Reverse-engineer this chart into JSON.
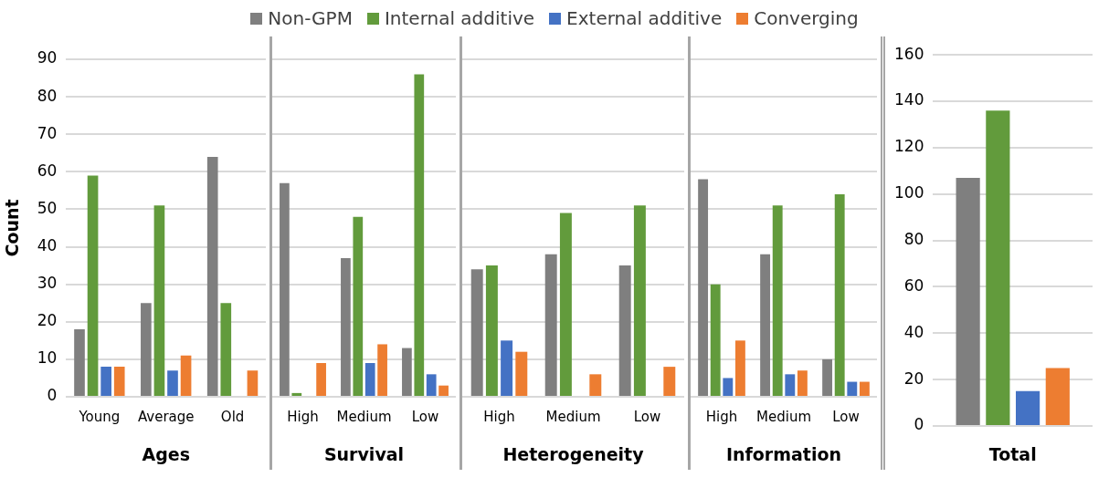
{
  "chart_data": [
    {
      "type": "bar",
      "xlabel": "Ages",
      "ylabel": "Count",
      "categories": [
        "Young",
        "Average",
        "Old"
      ],
      "ylim": [
        0,
        90
      ],
      "yticks": [
        0,
        10,
        20,
        30,
        40,
        50,
        60,
        70,
        80,
        90
      ],
      "grid": "y",
      "legend": "top",
      "series": [
        {
          "name": "Non-GPM",
          "color": "#7f7f7f",
          "values": [
            18,
            25,
            64
          ]
        },
        {
          "name": "Internal additive",
          "color": "#629b3c",
          "values": [
            59,
            51,
            25
          ]
        },
        {
          "name": "External additive",
          "color": "#4472c4",
          "values": [
            8,
            7,
            null
          ]
        },
        {
          "name": "Converging",
          "color": "#ed7d31",
          "values": [
            8,
            11,
            7
          ]
        }
      ]
    },
    {
      "type": "bar",
      "xlabel": "Survival",
      "categories": [
        "High",
        "Medium",
        "Low"
      ],
      "ylim": [
        0,
        90
      ],
      "yticks": [
        0,
        10,
        20,
        30,
        40,
        50,
        60,
        70,
        80,
        90
      ],
      "grid": "y",
      "tick_labels": "x",
      "series": [
        {
          "color": "#7f7f7f",
          "values": [
            57,
            37,
            13
          ]
        },
        {
          "color": "#629b3c",
          "values": [
            1,
            48,
            86
          ]
        },
        {
          "color": "#4472c4",
          "values": [
            null,
            9,
            6
          ]
        },
        {
          "color": "#ed7d31",
          "values": [
            9,
            14,
            3
          ]
        }
      ]
    },
    {
      "type": "bar",
      "xlabel": "Heterogeneity",
      "categories": [
        "High",
        "Medium",
        "Low"
      ],
      "ylim": [
        0,
        90
      ],
      "yticks": [
        0,
        10,
        20,
        30,
        40,
        50,
        60,
        70,
        80,
        90
      ],
      "grid": "y",
      "tick_labels": "x",
      "series": [
        {
          "color": "#7f7f7f",
          "values": [
            34,
            38,
            35
          ]
        },
        {
          "color": "#629b3c",
          "values": [
            35,
            49,
            51
          ]
        },
        {
          "color": "#4472c4",
          "values": [
            15,
            null,
            null
          ]
        },
        {
          "color": "#ed7d31",
          "values": [
            12,
            6,
            8
          ]
        }
      ]
    },
    {
      "type": "bar",
      "xlabel": "Information",
      "categories": [
        "High",
        "Medium",
        "Low"
      ],
      "ylim": [
        0,
        90
      ],
      "yticks": [
        0,
        10,
        20,
        30,
        40,
        50,
        60,
        70,
        80,
        90
      ],
      "grid": "y",
      "tick_labels": "x",
      "series": [
        {
          "color": "#7f7f7f",
          "values": [
            58,
            38,
            10
          ]
        },
        {
          "color": "#629b3c",
          "values": [
            30,
            51,
            54
          ]
        },
        {
          "color": "#4472c4",
          "values": [
            5,
            6,
            4
          ]
        },
        {
          "color": "#ed7d31",
          "values": [
            15,
            7,
            4
          ]
        }
      ]
    },
    {
      "type": "bar",
      "xlabel": "Total",
      "categories": [
        null
      ],
      "ylim": [
        0,
        160
      ],
      "yticks": [
        0,
        20,
        40,
        60,
        80,
        100,
        120,
        140,
        160
      ],
      "grid": "y",
      "series": [
        {
          "color": "#7f7f7f",
          "values": [
            107
          ]
        },
        {
          "color": "#629b3c",
          "values": [
            136
          ]
        },
        {
          "color": "#4472c4",
          "values": [
            15
          ]
        },
        {
          "color": "#ed7d31",
          "values": [
            25
          ]
        }
      ]
    }
  ]
}
